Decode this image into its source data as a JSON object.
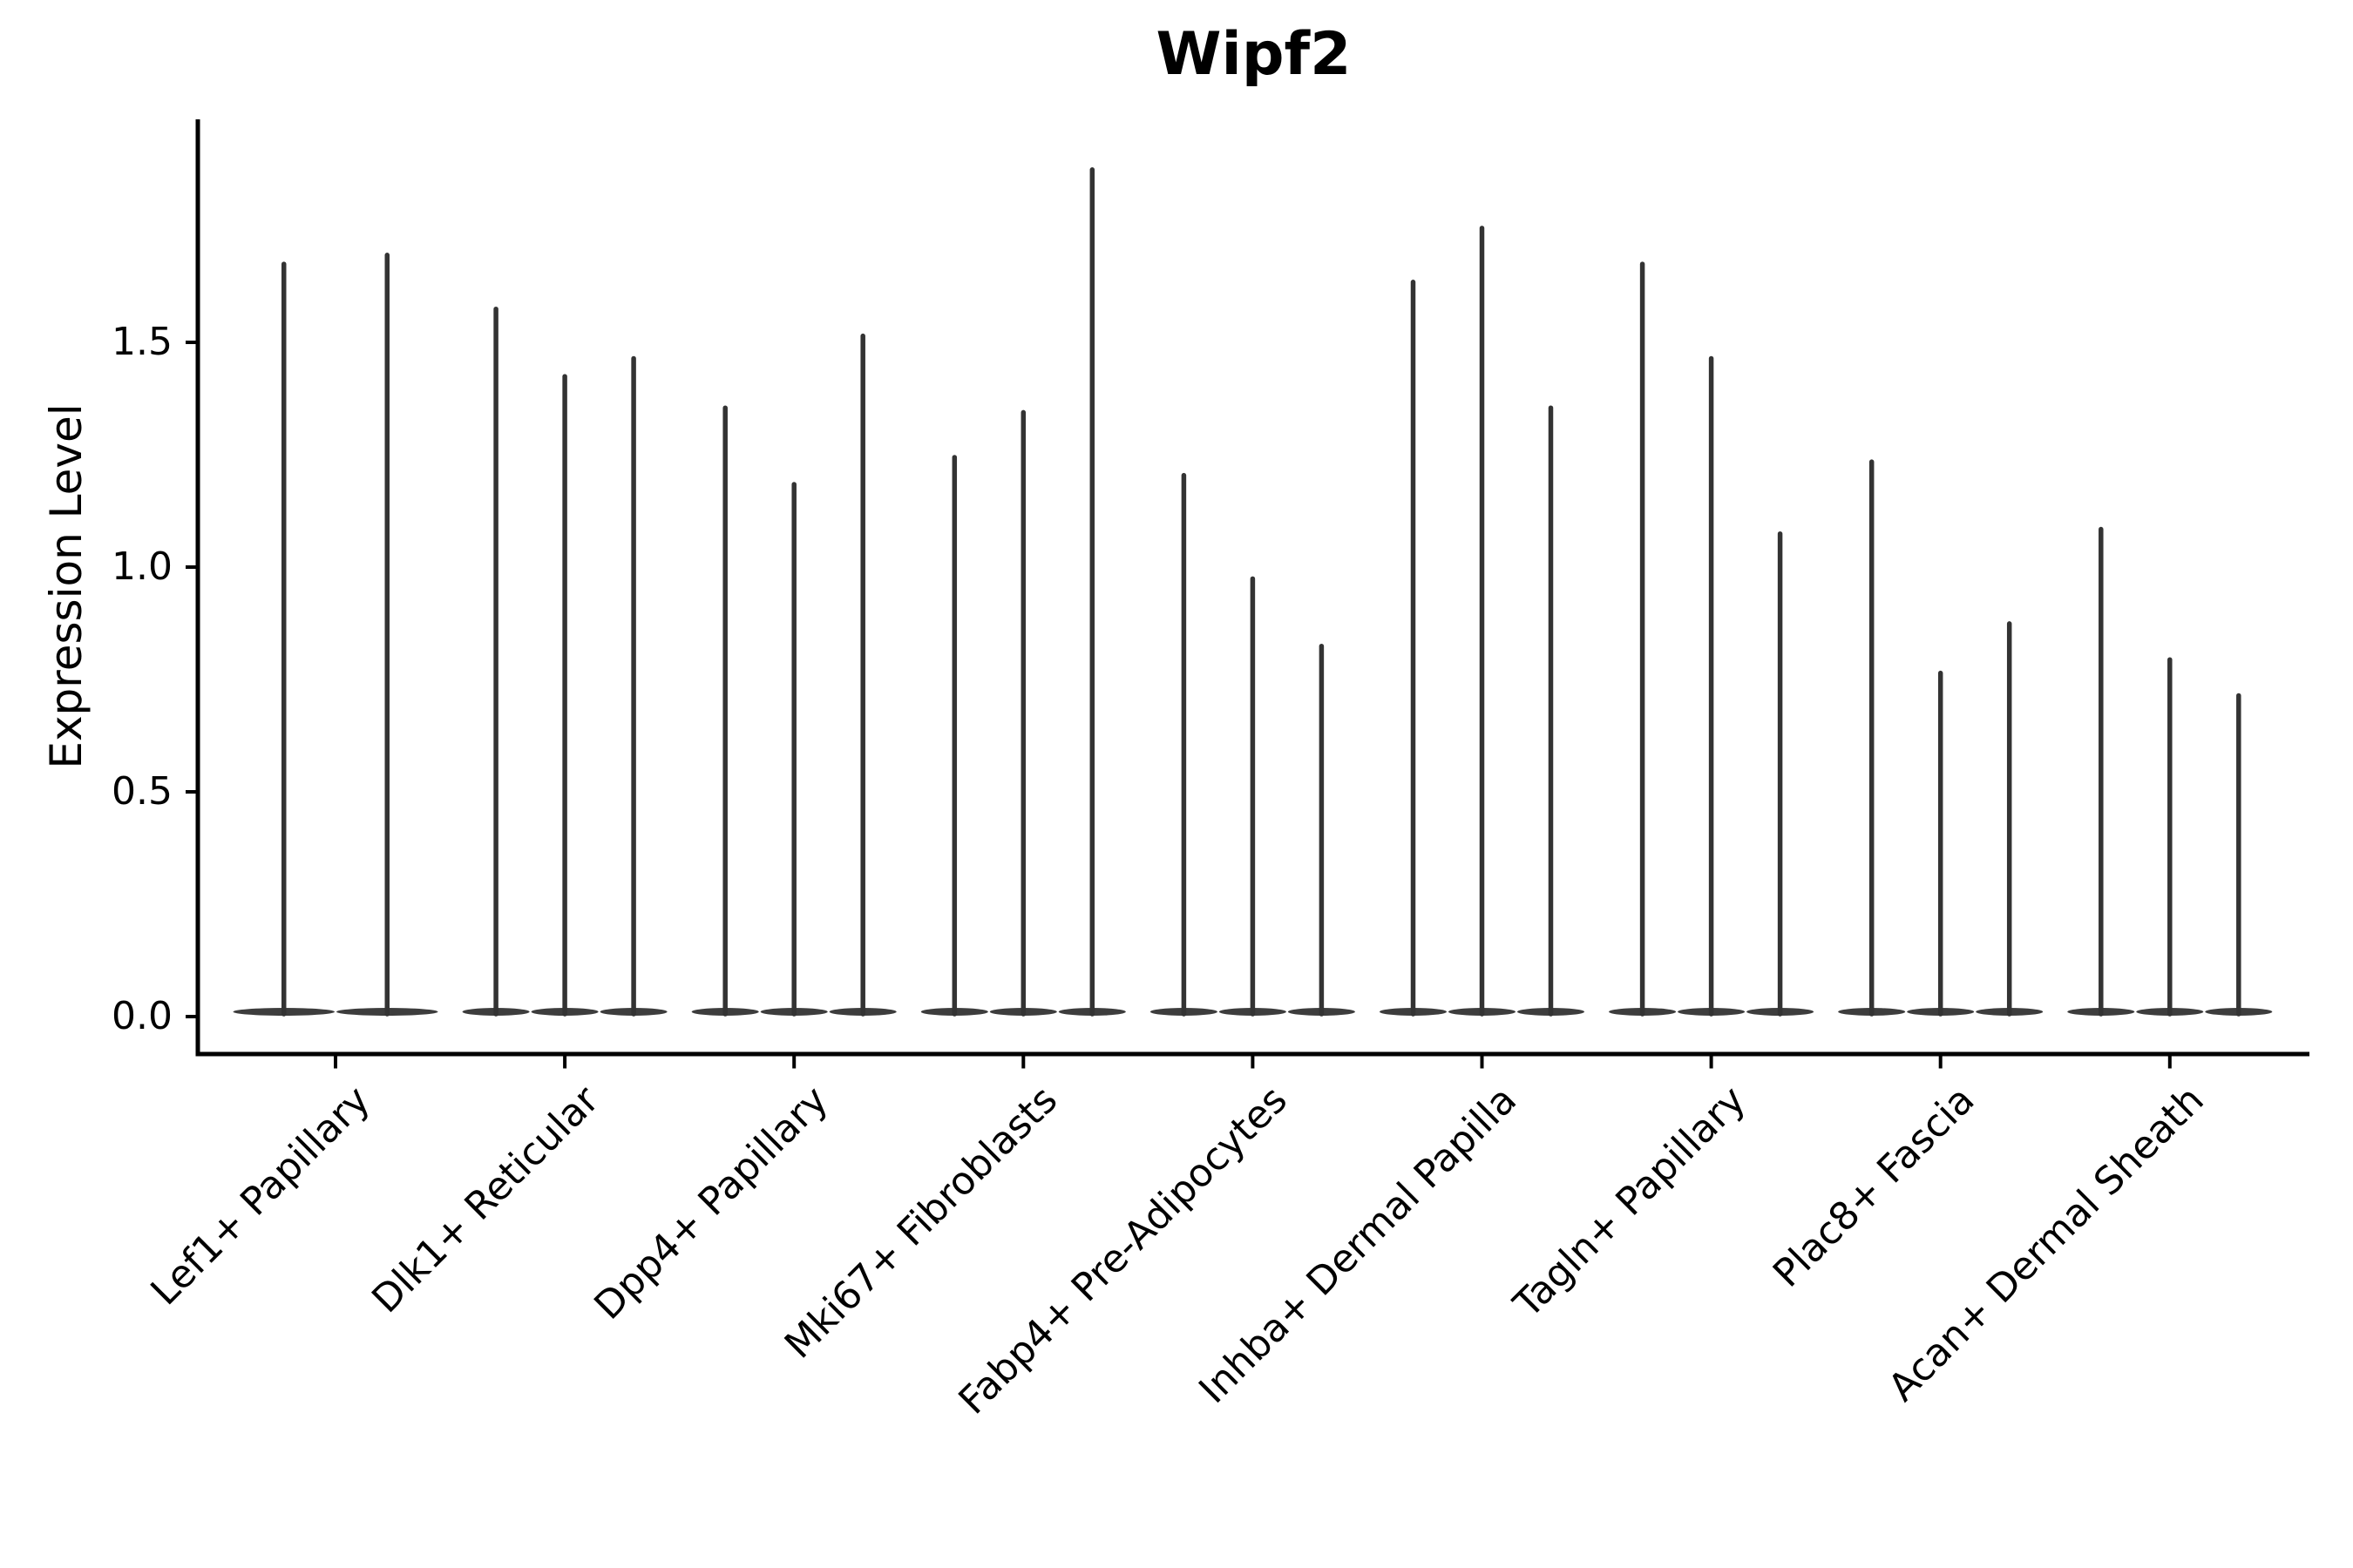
{
  "figure": {
    "title": "Wipf2",
    "ylabel": "Expression Level"
  },
  "chart_data": {
    "type": "violin",
    "title": "Wipf2",
    "xlabel": "",
    "ylabel": "Expression Level",
    "ylim": [
      -0.08,
      2.0
    ],
    "grid": false,
    "legend": null,
    "yticks": {
      "values": [
        0.0,
        0.5,
        1.0,
        1.5
      ],
      "labels": [
        "0.0",
        "0.5",
        "1.0",
        "1.5"
      ]
    },
    "categories": [
      "Lef1+ Papillary",
      "Dlk1+ Reticular",
      "Dpp4+ Papillary",
      "Mki67+ Fibroblasts",
      "Fabp4+ Pre-Adipocytes",
      "Inhba+ Dermal Papilla",
      "Tagln+ Papillary",
      "Plac8+ Fascia",
      "Acan+ Dermal Sheath"
    ],
    "groups": [
      {
        "label": "Lef1+ Papillary",
        "violin_maxima": [
          1.68,
          1.7
        ]
      },
      {
        "label": "Dlk1+ Reticular",
        "violin_maxima": [
          1.58,
          1.43,
          1.47
        ]
      },
      {
        "label": "Dpp4+ Papillary",
        "violin_maxima": [
          1.36,
          1.19,
          1.52
        ]
      },
      {
        "label": "Mki67+ Fibroblasts",
        "violin_maxima": [
          1.25,
          1.35,
          1.89
        ]
      },
      {
        "label": "Fabp4+ Pre-Adipocytes",
        "violin_maxima": [
          1.21,
          0.98,
          0.83
        ]
      },
      {
        "label": "Inhba+ Dermal Papilla",
        "violin_maxima": [
          1.64,
          1.76,
          1.36
        ]
      },
      {
        "label": "Tagln+ Papillary",
        "violin_maxima": [
          1.68,
          1.47,
          1.08
        ]
      },
      {
        "label": "Plac8+ Fascia",
        "violin_maxima": [
          1.24,
          0.77,
          0.88
        ]
      },
      {
        "label": "Acan+ Dermal Sheath",
        "violin_maxima": [
          1.09,
          0.8,
          0.72
        ]
      }
    ],
    "violin_baseline_value": 0.0,
    "colors": {
      "violin": "#333333",
      "violin_body": "#3d3d3d",
      "axis": "#000000",
      "background": "#ffffff",
      "text": "#000000"
    }
  }
}
